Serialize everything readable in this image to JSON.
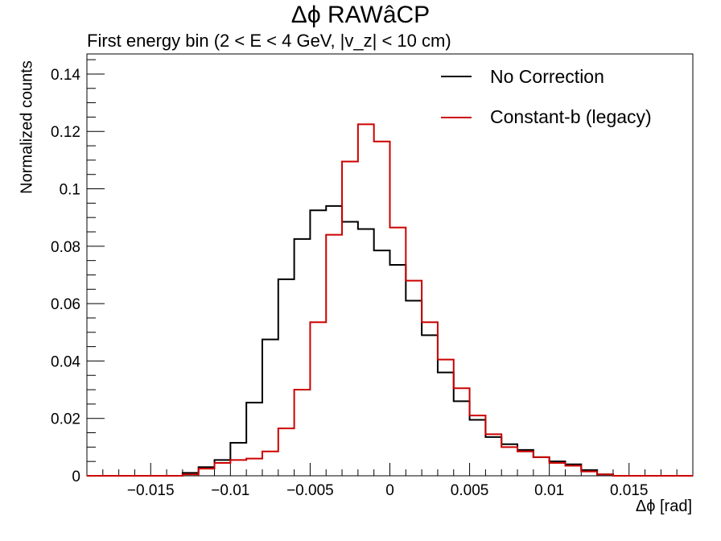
{
  "chart_data": {
    "type": "histogram",
    "title": "Δϕ RAWâCP",
    "subtitle": "First energy bin (2 < E < 4 GeV, |v_z| < 10 cm)",
    "xlabel": "Δϕ  [rad]",
    "ylabel": "Normalized counts",
    "xlim": [
      -0.019,
      0.019
    ],
    "ylim": [
      0,
      0.147
    ],
    "bin_width": 0.001,
    "bin_edges_start": -0.019,
    "x_ticks": [
      -0.015,
      -0.01,
      -0.005,
      0,
      0.005,
      0.01,
      0.015
    ],
    "x_tick_labels": [
      "−0.015",
      "−0.01",
      "−0.005",
      "0",
      "0.005",
      "0.01",
      "0.015"
    ],
    "y_ticks": [
      0,
      0.02,
      0.04,
      0.06,
      0.08,
      0.1,
      0.12,
      0.14
    ],
    "y_tick_labels": [
      "0",
      "0.02",
      "0.04",
      "0.06",
      "0.08",
      "0.1",
      "0.12",
      "0.14"
    ],
    "grid": false,
    "legend_position": "top-right",
    "series": [
      {
        "name": "No Correction",
        "color": "#000000",
        "values": [
          0,
          0,
          0,
          0,
          0,
          0,
          0.001,
          0.003,
          0.0055,
          0.0115,
          0.0255,
          0.0475,
          0.0685,
          0.0825,
          0.0925,
          0.094,
          0.0885,
          0.086,
          0.0785,
          0.0735,
          0.061,
          0.049,
          0.036,
          0.026,
          0.0195,
          0.0135,
          0.011,
          0.009,
          0.0065,
          0.005,
          0.004,
          0.002,
          0.0005,
          0,
          0,
          0,
          0,
          0
        ]
      },
      {
        "name": "Constant-b (legacy)",
        "color": "#cc0000",
        "values": [
          0,
          0,
          0,
          0,
          0,
          0,
          0.0005,
          0.0025,
          0.0045,
          0.0055,
          0.006,
          0.0085,
          0.0165,
          0.03,
          0.0535,
          0.084,
          0.1095,
          0.1225,
          0.1165,
          0.0865,
          0.068,
          0.0535,
          0.0405,
          0.0305,
          0.021,
          0.0145,
          0.01,
          0.0085,
          0.0065,
          0.0045,
          0.0035,
          0.0015,
          0.0005,
          0,
          0,
          0,
          0,
          0
        ]
      }
    ]
  }
}
